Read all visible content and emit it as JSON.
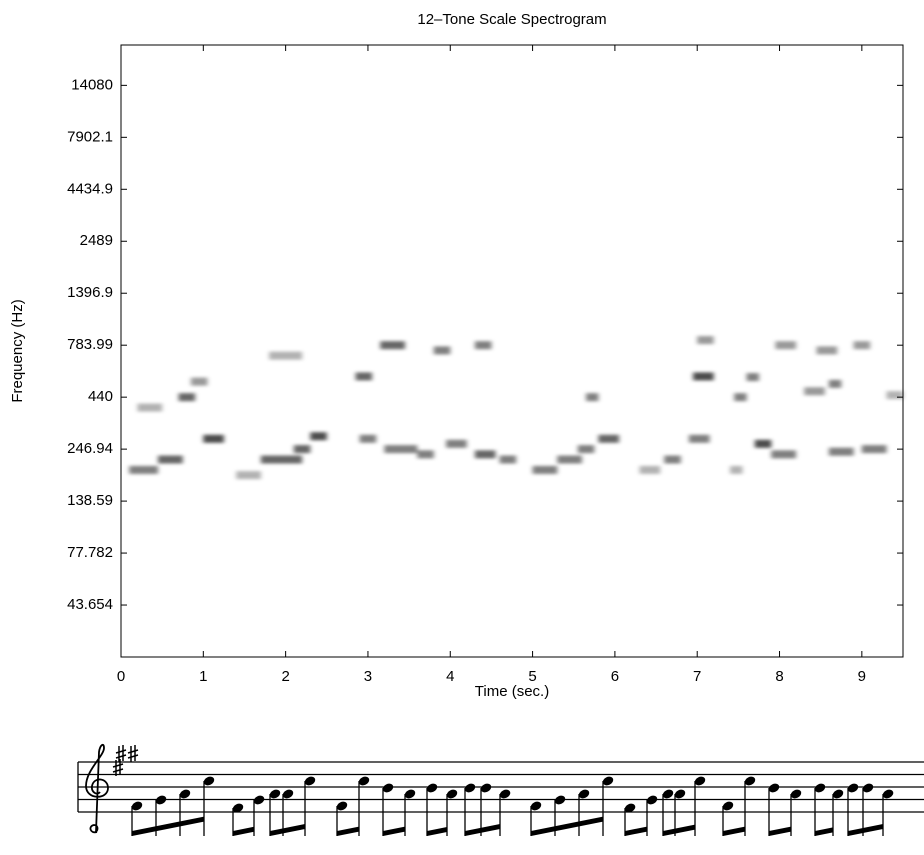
{
  "chart_data": {
    "type": "spectrogram",
    "title": "12–Tone Scale Spectrogram",
    "x_label": "Time (sec.)",
    "y_label": "Frequency (Hz)",
    "xlim": [
      0,
      9.5
    ],
    "xticks": [
      0,
      1,
      2,
      3,
      4,
      5,
      6,
      7,
      8,
      9
    ],
    "ylim": [
      24.5,
      22050
    ],
    "ylog": true,
    "yticks": [
      43.654,
      77.782,
      138.59,
      246.94,
      440,
      783.99,
      1396.9,
      2489,
      4434.9,
      7902.1,
      14080
    ],
    "grid": false,
    "color": "#000000",
    "segments": [
      [
        0.1,
        0.45,
        196,
        0.5
      ],
      [
        0.45,
        0.75,
        220,
        0.6
      ],
      [
        0.2,
        0.5,
        392,
        0.3
      ],
      [
        0.7,
        0.9,
        440,
        0.6
      ],
      [
        0.85,
        1.05,
        523,
        0.4
      ],
      [
        1.0,
        1.25,
        277,
        0.7
      ],
      [
        1.4,
        1.7,
        185,
        0.3
      ],
      [
        1.7,
        2.2,
        220,
        0.6
      ],
      [
        2.1,
        2.3,
        247,
        0.6
      ],
      [
        2.3,
        2.5,
        285,
        0.7
      ],
      [
        1.8,
        2.2,
        698,
        0.3
      ],
      [
        2.85,
        3.05,
        554,
        0.6
      ],
      [
        2.9,
        3.1,
        277,
        0.5
      ],
      [
        3.15,
        3.45,
        784,
        0.6
      ],
      [
        3.2,
        3.6,
        247,
        0.5
      ],
      [
        3.6,
        3.8,
        233,
        0.5
      ],
      [
        3.8,
        4.0,
        740,
        0.5
      ],
      [
        3.95,
        4.2,
        262,
        0.5
      ],
      [
        4.3,
        4.5,
        784,
        0.5
      ],
      [
        4.3,
        4.55,
        233,
        0.6
      ],
      [
        4.6,
        4.8,
        220,
        0.5
      ],
      [
        5.0,
        5.3,
        196,
        0.5
      ],
      [
        5.3,
        5.6,
        220,
        0.5
      ],
      [
        5.55,
        5.75,
        247,
        0.5
      ],
      [
        5.65,
        5.8,
        440,
        0.5
      ],
      [
        5.8,
        6.05,
        277,
        0.6
      ],
      [
        6.3,
        6.55,
        196,
        0.3
      ],
      [
        6.6,
        6.8,
        220,
        0.5
      ],
      [
        6.9,
        7.15,
        277,
        0.5
      ],
      [
        6.95,
        7.2,
        554,
        0.7
      ],
      [
        7.0,
        7.2,
        830,
        0.4
      ],
      [
        7.4,
        7.55,
        196,
        0.3
      ],
      [
        7.45,
        7.6,
        440,
        0.5
      ],
      [
        7.6,
        7.75,
        550,
        0.5
      ],
      [
        7.7,
        7.9,
        262,
        0.7
      ],
      [
        7.9,
        8.2,
        233,
        0.5
      ],
      [
        7.95,
        8.2,
        784,
        0.4
      ],
      [
        8.3,
        8.55,
        470,
        0.4
      ],
      [
        8.45,
        8.7,
        740,
        0.4
      ],
      [
        8.6,
        8.75,
        510,
        0.5
      ],
      [
        8.6,
        8.9,
        240,
        0.5
      ],
      [
        8.9,
        9.1,
        784,
        0.4
      ],
      [
        9.0,
        9.3,
        247,
        0.5
      ],
      [
        9.3,
        9.5,
        450,
        0.3
      ]
    ]
  }
}
